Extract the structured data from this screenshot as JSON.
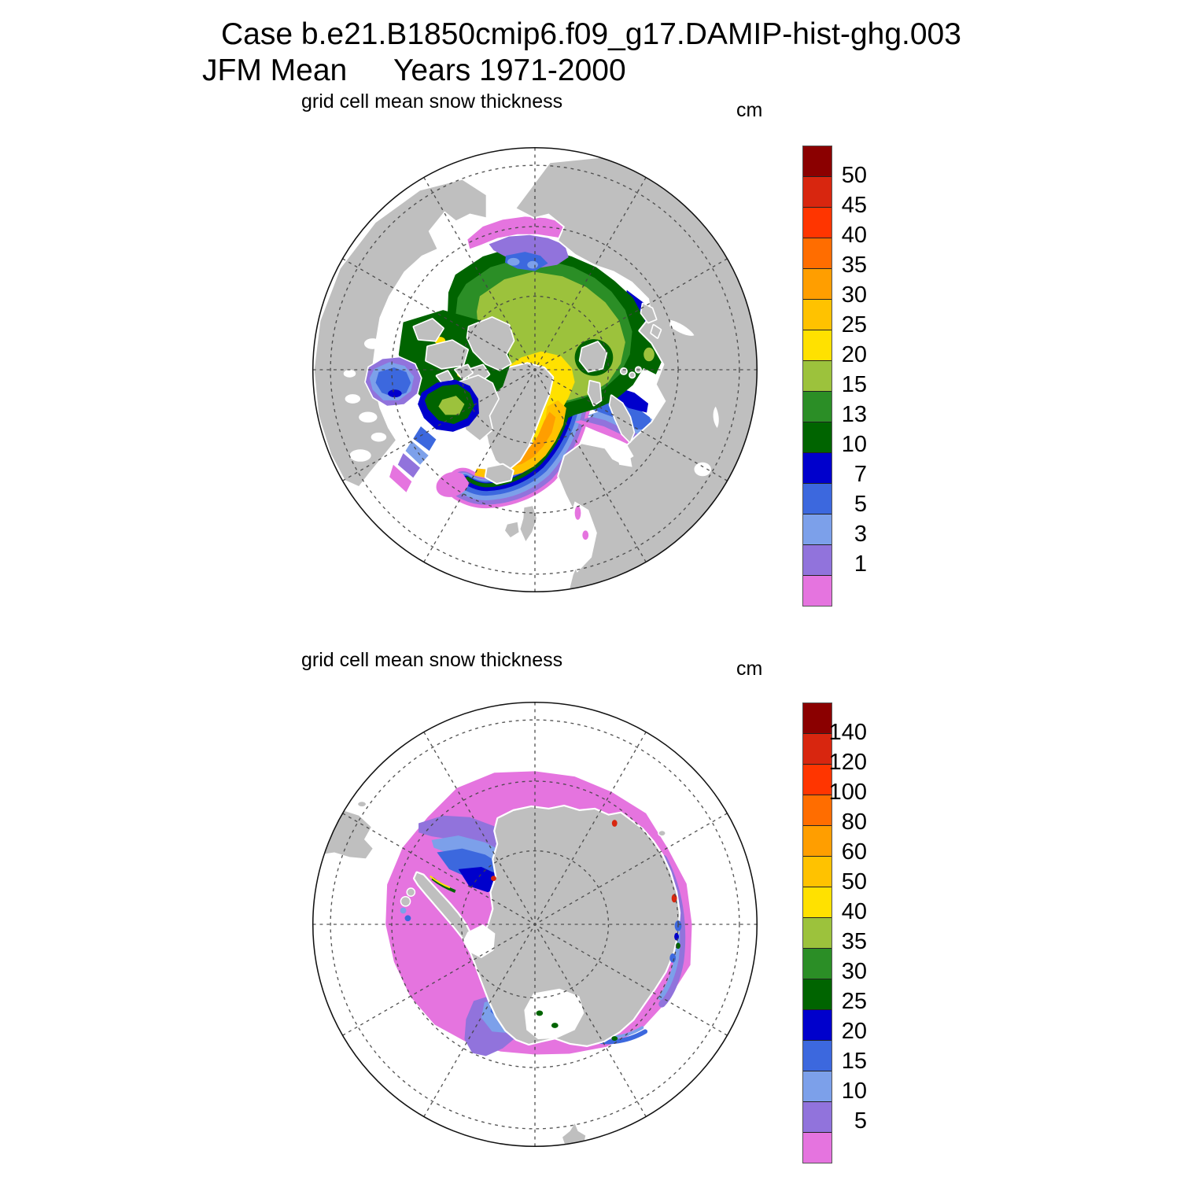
{
  "title": {
    "case_line": "Case b.e21.B1850cmip6.f09_g17.DAMIP-hist-ghg.003",
    "season": "JFM Mean",
    "years": "Years 1971-2000"
  },
  "panels": [
    {
      "id": "north",
      "subtitle": "grid cell mean snow thickness",
      "units": "cm",
      "hemisphere": "Northern Hemisphere (Arctic) polar stereographic map",
      "colorbar_labels": [
        "50",
        "45",
        "40",
        "35",
        "30",
        "25",
        "20",
        "15",
        "13",
        "10",
        "7",
        "5",
        "3",
        "1"
      ]
    },
    {
      "id": "south",
      "subtitle": "grid cell mean snow thickness",
      "units": "cm",
      "hemisphere": "Southern Hemisphere (Antarctic) polar stereographic map",
      "colorbar_labels": [
        "140",
        "120",
        "100",
        "80",
        "60",
        "50",
        "40",
        "35",
        "30",
        "25",
        "20",
        "15",
        "10",
        "5"
      ]
    }
  ],
  "colorbar_colors": [
    "#8B0000",
    "#D8260F",
    "#FF3500",
    "#FF6D00",
    "#FF9E00",
    "#FFC200",
    "#FFE100",
    "#9CC23C",
    "#2B8E26",
    "#006400",
    "#0000CC",
    "#3C68DE",
    "#7CA0EA",
    "#9173DC",
    "#E574DF"
  ],
  "map_colors": {
    "land": "#BFBFBF",
    "ocean": "#FFFFFF",
    "coast_halo": "#FFFFFF",
    "graticule": "#444444",
    "map_outline": "#111111"
  },
  "chart_data": [
    {
      "type": "heatmap",
      "title": "grid cell mean snow thickness",
      "subtitle_units": "cm",
      "region": "Arctic / Northern Hemisphere, north polar stereographic, JFM mean 1971-2000",
      "levels_cm": [
        1,
        3,
        5,
        7,
        10,
        13,
        15,
        20,
        25,
        30,
        35,
        40,
        45,
        50
      ],
      "palette_low_to_high": [
        "#E574DF",
        "#9173DC",
        "#7CA0EA",
        "#3C68DE",
        "#0000CC",
        "#006400",
        "#2B8E26",
        "#9CC23C",
        "#FFE100",
        "#FFC200",
        "#FF9E00",
        "#FF6D00",
        "#FF3500",
        "#D8260F",
        "#8B0000"
      ],
      "legend_position": "right",
      "features": [
        {
          "area": "central Arctic Ocean",
          "value_cm": "15-20"
        },
        {
          "area": "ring around central pack / Siberian side",
          "value_cm": "10-15"
        },
        {
          "area": "north of Greenland toward pole",
          "value_cm": "20-25"
        },
        {
          "area": "northeast & east Greenland coastal band",
          "value_cm": "25-40"
        },
        {
          "area": "Chukchi / East Siberian seas",
          "value_cm": "1-7"
        },
        {
          "area": "Barents Sea ice edge",
          "value_cm": "1-10"
        },
        {
          "area": "Hudson Bay",
          "value_cm": "3-10"
        },
        {
          "area": "Baffin Bay",
          "value_cm": "10-15"
        },
        {
          "area": "Labrador / Denmark Strait ice edge",
          "value_cm": "0-5"
        }
      ]
    },
    {
      "type": "heatmap",
      "title": "grid cell mean snow thickness",
      "subtitle_units": "cm",
      "region": "Antarctic / Southern Hemisphere, south polar stereographic, JFM mean 1971-2000",
      "levels_cm": [
        5,
        10,
        15,
        20,
        25,
        30,
        35,
        40,
        50,
        60,
        80,
        100,
        120,
        140
      ],
      "palette_low_to_high": [
        "#E574DF",
        "#9173DC",
        "#7CA0EA",
        "#3C68DE",
        "#0000CC",
        "#006400",
        "#2B8E26",
        "#9CC23C",
        "#FFE100",
        "#FFC200",
        "#FF9E00",
        "#FF6D00",
        "#FF3500",
        "#D8260F",
        "#8B0000"
      ],
      "legend_position": "right",
      "features": [
        {
          "area": "broad circumpolar ring around Antarctica",
          "value_cm": "0-5"
        },
        {
          "area": "Weddell Sea",
          "value_cm": "10-25"
        },
        {
          "area": "western Ross Sea lobe",
          "value_cm": "5-20"
        },
        {
          "area": "East Antarctic coastal fringe",
          "value_cm": "5-20"
        },
        {
          "area": "isolated coastal spots",
          "value_cm": ">120"
        }
      ]
    }
  ]
}
